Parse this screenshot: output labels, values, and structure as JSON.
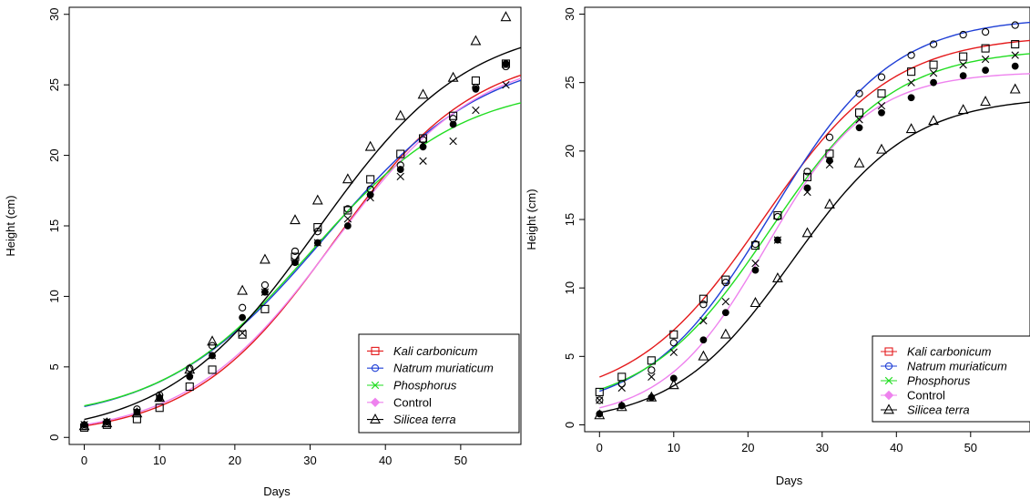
{
  "chart_data": [
    {
      "type": "scatter",
      "xlabel": "Days",
      "ylabel": "Height (cm)",
      "xlim": [
        -2,
        58
      ],
      "ylim": [
        -0.5,
        30.5
      ],
      "xticks": [
        0,
        10,
        20,
        30,
        40,
        50
      ],
      "yticks": [
        0,
        5,
        10,
        15,
        20,
        25,
        30
      ],
      "legend_position": "bottom-right",
      "series": [
        {
          "name": "Kali carbonicum",
          "italic": true,
          "color": "#e41a1c",
          "marker": "square",
          "x": [
            0,
            3,
            7,
            10,
            14,
            17,
            21,
            24,
            28,
            31,
            35,
            38,
            42,
            45,
            49,
            52,
            56
          ],
          "y": [
            0.7,
            0.9,
            1.3,
            2.1,
            3.6,
            4.8,
            7.3,
            9.1,
            12.8,
            14.9,
            16.1,
            18.3,
            20.1,
            21.2,
            22.8,
            25.3,
            26.5
          ],
          "fit": {
            "A": 27.5,
            "k": 0.106,
            "x0": 33,
            "c": 0.0
          }
        },
        {
          "name": "Natrum muriaticum",
          "italic": true,
          "color": "#1f3fd6",
          "marker": "circle",
          "x": [
            0,
            3,
            7,
            10,
            14,
            17,
            21,
            24,
            28,
            31,
            35,
            38,
            42,
            45,
            49,
            52,
            56
          ],
          "y": [
            0.8,
            1.0,
            2.0,
            3.0,
            4.9,
            6.5,
            9.2,
            10.8,
            13.2,
            14.6,
            16.2,
            17.6,
            19.3,
            21.1,
            22.6,
            24.8,
            26.3
          ],
          "fit": {
            "A": 26.6,
            "k": 0.093,
            "x0": 32,
            "c": 0.9
          }
        },
        {
          "name": "Phosphorus",
          "italic": true,
          "color": "#22dd22",
          "marker": "x",
          "x": [
            0,
            3,
            7,
            10,
            14,
            17,
            21,
            24,
            28,
            31,
            35,
            38,
            42,
            45,
            49,
            52,
            56
          ],
          "y": [
            0.9,
            1.1,
            1.8,
            2.8,
            4.6,
            5.8,
            7.4,
            10.3,
            12.5,
            13.8,
            15.5,
            17.0,
            18.5,
            19.6,
            21.0,
            23.2,
            25.0
          ],
          "fit": {
            "A": 24.0,
            "k": 0.1,
            "x0": 30,
            "c": 1.1
          }
        },
        {
          "name": "Control",
          "italic": false,
          "color": "#ee82ee",
          "marker": "diamond",
          "x": [
            0,
            3,
            7,
            10,
            14,
            17,
            21,
            24,
            28,
            31,
            35,
            38,
            42,
            45,
            49,
            52,
            56
          ],
          "y": [
            0.9,
            1.1,
            1.8,
            2.8,
            4.3,
            5.8,
            8.5,
            10.3,
            12.4,
            13.8,
            15.0,
            17.2,
            19.0,
            20.6,
            22.2,
            24.7,
            26.5
          ],
          "marker_fill": "#000000",
          "fit": {
            "A": 27.4,
            "k": 0.103,
            "x0": 33,
            "c": 0.0
          }
        },
        {
          "name": "Silicea terra",
          "italic": true,
          "color": "#000000",
          "marker": "triangle",
          "x": [
            0,
            3,
            7,
            10,
            14,
            17,
            21,
            24,
            28,
            31,
            35,
            38,
            42,
            45,
            49,
            52,
            56
          ],
          "y": [
            0.8,
            1.0,
            1.7,
            2.8,
            4.8,
            6.8,
            10.4,
            12.6,
            15.4,
            16.8,
            18.3,
            20.6,
            22.8,
            24.3,
            25.5,
            28.1,
            29.8
          ],
          "fit": {
            "A": 29.5,
            "k": 0.1,
            "x0": 31,
            "c": 0.0
          }
        }
      ]
    },
    {
      "type": "scatter",
      "xlabel": "Days",
      "ylabel": "Height (cm)",
      "xlim": [
        -2,
        58
      ],
      "ylim": [
        -0.5,
        30.5
      ],
      "xticks": [
        0,
        10,
        20,
        30,
        40,
        50
      ],
      "yticks": [
        0,
        5,
        10,
        15,
        20,
        25,
        30
      ],
      "legend_position": "bottom-right",
      "series": [
        {
          "name": "Kali carbonicum",
          "italic": true,
          "color": "#e41a1c",
          "marker": "square",
          "x": [
            0,
            3,
            7,
            10,
            14,
            17,
            21,
            24,
            28,
            31,
            35,
            38,
            42,
            45,
            49,
            52,
            56
          ],
          "y": [
            2.4,
            3.5,
            4.7,
            6.6,
            9.2,
            10.6,
            13.1,
            15.3,
            18.1,
            19.8,
            22.8,
            24.2,
            25.8,
            26.3,
            26.9,
            27.5,
            27.8
          ],
          "fit": {
            "A": 27.0,
            "k": 0.115,
            "x0": 22,
            "c": 1.5
          }
        },
        {
          "name": "Natrum muriaticum",
          "italic": true,
          "color": "#1f3fd6",
          "marker": "circle",
          "x": [
            0,
            3,
            7,
            10,
            14,
            17,
            21,
            24,
            28,
            31,
            35,
            38,
            42,
            45,
            49,
            52,
            56
          ],
          "y": [
            1.8,
            3.0,
            4.0,
            6.0,
            8.8,
            10.4,
            13.2,
            15.2,
            18.5,
            21.0,
            24.2,
            25.4,
            27.0,
            27.8,
            28.5,
            28.7,
            29.2
          ],
          "fit": {
            "A": 29.0,
            "k": 0.122,
            "x0": 23,
            "c": 0.8
          }
        },
        {
          "name": "Phosphorus",
          "italic": true,
          "color": "#22dd22",
          "marker": "x",
          "x": [
            0,
            3,
            7,
            10,
            14,
            17,
            21,
            24,
            28,
            31,
            35,
            38,
            42,
            45,
            49,
            52,
            56
          ],
          "y": [
            1.8,
            2.7,
            3.5,
            5.3,
            7.6,
            9.0,
            11.8,
            13.5,
            17.0,
            19.0,
            22.3,
            23.3,
            25.0,
            25.7,
            26.3,
            26.7,
            27.0
          ],
          "fit": {
            "A": 26.5,
            "k": 0.12,
            "x0": 23,
            "c": 1.0
          }
        },
        {
          "name": "Control",
          "italic": false,
          "color": "#ee82ee",
          "marker": "diamond",
          "x": [
            0,
            3,
            7,
            10,
            14,
            17,
            21,
            24,
            28,
            31,
            35,
            38,
            42,
            45,
            49,
            52,
            56
          ],
          "y": [
            0.8,
            1.4,
            2.0,
            3.4,
            6.2,
            8.2,
            11.3,
            13.5,
            17.3,
            19.3,
            21.7,
            22.8,
            23.9,
            25.0,
            25.5,
            25.9,
            26.2
          ],
          "marker_fill": "#000000",
          "fit": {
            "A": 25.5,
            "k": 0.145,
            "x0": 22.5,
            "c": 0.3
          }
        },
        {
          "name": "Silicea terra",
          "italic": true,
          "color": "#000000",
          "marker": "triangle",
          "x": [
            0,
            3,
            7,
            10,
            14,
            17,
            21,
            24,
            28,
            31,
            35,
            38,
            42,
            45,
            49,
            52,
            56
          ],
          "y": [
            0.7,
            1.3,
            2.0,
            2.9,
            5.0,
            6.6,
            8.9,
            10.7,
            14.0,
            16.1,
            19.1,
            20.1,
            21.6,
            22.2,
            23.0,
            23.6,
            24.5
          ],
          "fit": {
            "A": 24.0,
            "k": 0.125,
            "x0": 26,
            "c": 0.0
          }
        }
      ]
    }
  ]
}
